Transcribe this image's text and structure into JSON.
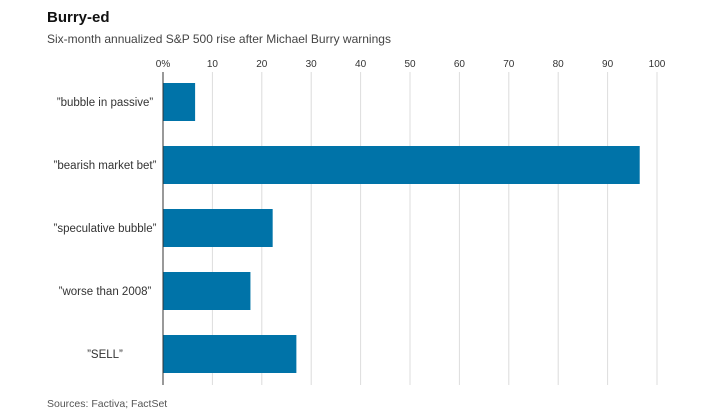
{
  "title": "Burry-ed",
  "subtitle": "Six-month annualized S&P 500 rise after Michael Burry warnings",
  "source": "Sources: Factiva; FactSet",
  "colors": {
    "bar": "#0073a8",
    "grid": "#dcdcdc",
    "axis": "#333333",
    "text": "#333333"
  },
  "chart_data": {
    "type": "bar",
    "orientation": "horizontal",
    "categories": [
      "”bubble in passive”",
      "”bearish market bet”",
      "”speculative bubble”",
      "”worse than 2008”",
      "”SELL”"
    ],
    "values": [
      6.5,
      96.5,
      22.2,
      17.7,
      27.0
    ],
    "xlim": [
      0,
      100
    ],
    "xticks": [
      0,
      10,
      20,
      30,
      40,
      50,
      60,
      70,
      80,
      90,
      100
    ],
    "xtick_labels": [
      "0%",
      "10",
      "20",
      "30",
      "40",
      "50",
      "60",
      "70",
      "80",
      "90",
      "100"
    ],
    "xaxis_position": "top",
    "grid": true,
    "legend": "none"
  }
}
